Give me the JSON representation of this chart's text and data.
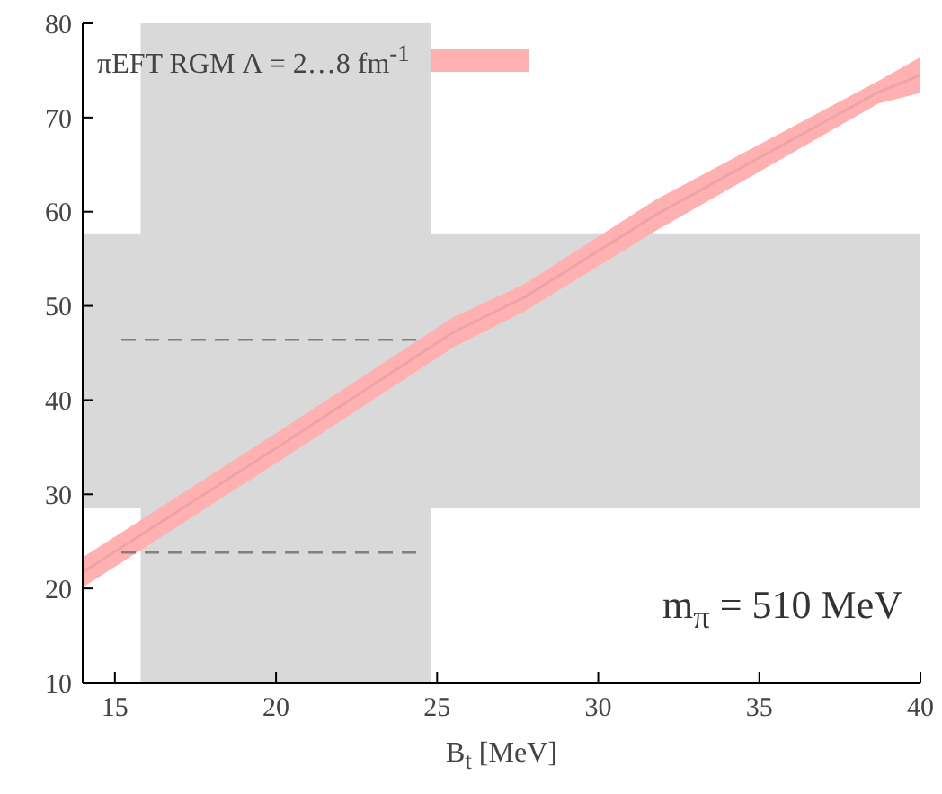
{
  "chart_data": {
    "type": "line",
    "xlabel": "B$_{t}$ [MeV]",
    "annotations": [
      "m$_{π}$ = 510 MeV"
    ],
    "xlim": [
      14,
      40
    ],
    "xticks": [
      15,
      20,
      25,
      30,
      35,
      40
    ],
    "ylim": [
      10,
      80
    ],
    "yticks": [
      10,
      20,
      30,
      40,
      50,
      60,
      70,
      80
    ],
    "grid": false,
    "legend": "top left",
    "bands": [
      {
        "axis": "x",
        "from": 15.8,
        "to": 24.8,
        "color": "#d9d9d9"
      },
      {
        "axis": "y",
        "from": 28.5,
        "to": 57.7,
        "color": "#d9d9d9"
      }
    ],
    "series": [
      {
        "name": "πEFT RGM Λ = 2…8 fm$^{-1}$",
        "color": "#ffb0b0",
        "x": [
          14,
          20,
          25.5,
          27.7,
          31.8,
          38.7,
          40
        ],
        "values": [
          21.7,
          34.9,
          47.2,
          50.9,
          59.7,
          72.7,
          74.5
        ],
        "lower": [
          20.1,
          33.3,
          45.6,
          49.4,
          58.0,
          71.5,
          72.6
        ],
        "upper": [
          23.3,
          36.5,
          48.8,
          52.3,
          61.3,
          73.9,
          76.4
        ]
      },
      {
        "type": "line",
        "color": "#808080",
        "line_style": "dashed",
        "x": [
          15.2,
          24.4
        ],
        "values": [
          46.4,
          46.4
        ]
      },
      {
        "type": "line",
        "color": "#808080",
        "line_style": "dashed",
        "x": [
          15.2,
          24.4
        ],
        "values": [
          23.8,
          23.8
        ]
      }
    ]
  }
}
